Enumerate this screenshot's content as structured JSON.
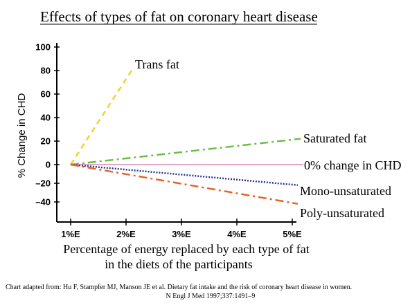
{
  "chart_data": {
    "type": "line",
    "title": "Effects of types of fat on coronary heart disease",
    "ylabel": "% Change in CHD",
    "xlabel_line1": "Percentage of energy replaced by each type of fat",
    "xlabel_line2": "in the diets of the participants",
    "x_ticks": [
      1,
      2,
      3,
      4,
      5
    ],
    "x_tick_labels": [
      "1%E",
      "2%E",
      "3%E",
      "4%E",
      "5%E"
    ],
    "y_tick_values": [
      100,
      80,
      60,
      40,
      20,
      0,
      -20,
      -40
    ],
    "y_tick_labels": [
      "100",
      "80",
      "60",
      "40",
      "20",
      "0",
      "–20",
      "–40"
    ],
    "ylim": [
      -50,
      100
    ],
    "xlim": [
      0.93,
      5.1
    ],
    "grid": false,
    "series": [
      {
        "name": "Trans fat",
        "x": [
          1,
          2.1
        ],
        "y": [
          0,
          80
        ],
        "color": "#f2d12e",
        "dash": "8,6",
        "width": 2.5
      },
      {
        "name": "Saturated fat",
        "x": [
          1,
          5.15
        ],
        "y": [
          0,
          22
        ],
        "color": "#6cbd45",
        "dash": "12,5,3,5",
        "width": 2.5
      },
      {
        "name": "0% change in CHD",
        "x": [
          1,
          5.2
        ],
        "y": [
          0,
          0
        ],
        "color": "#d889b6",
        "dash": "",
        "width": 1.5
      },
      {
        "name": "Mono-unsaturated",
        "x": [
          1,
          5.1
        ],
        "y": [
          0,
          -22
        ],
        "color": "#2a3590",
        "dash": "2,2",
        "width": 2.5
      },
      {
        "name": "Poly-unsaturated",
        "x": [
          1,
          5.1
        ],
        "y": [
          0,
          -42
        ],
        "color": "#e8612a",
        "dash": "12,5,3,5",
        "width": 2.5
      }
    ],
    "annotations": [
      {
        "text": "Trans fat",
        "color": "#000000"
      },
      {
        "text": "Saturated fat",
        "color": "#000000"
      },
      {
        "text": "0% change in CHD",
        "color": "#e87878"
      },
      {
        "text": "Mono-unsaturated",
        "color": "#000000"
      },
      {
        "text": "Poly-unsaturated",
        "color": "#000000"
      }
    ]
  },
  "source_line1": "Chart adapted from: Hu F, Stampfer MJ, Manson JE et al. Dietary fat intake and the risk of coronary heart disease in women.",
  "source_line2": "N Engl J Med 1997;337:1491–9"
}
